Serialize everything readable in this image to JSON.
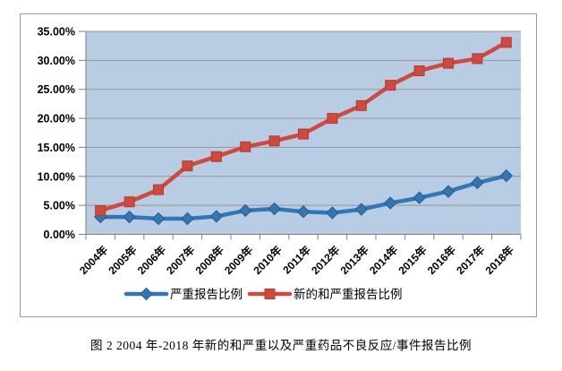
{
  "figure": {
    "caption": "图 2 2004 年-2018 年新的和严重以及严重药品不良反应/事件报告比例"
  },
  "chart_data": {
    "type": "line",
    "title": "",
    "xlabel": "",
    "ylabel": "",
    "categories": [
      "2004年",
      "2005年",
      "2006年",
      "2007年",
      "2008年",
      "2009年",
      "2010年",
      "2011年",
      "2012年",
      "2013年",
      "2014年",
      "2015年",
      "2016年",
      "2017年",
      "2018年"
    ],
    "series": [
      {
        "name": "严重报告比例",
        "marker": "diamond",
        "color": "#3176b5",
        "edge_color": "#27598a",
        "values": [
          3.0,
          3.0,
          2.7,
          2.7,
          3.1,
          4.1,
          4.4,
          3.9,
          3.7,
          4.3,
          5.4,
          6.3,
          7.4,
          8.9,
          10.1
        ]
      },
      {
        "name": "新的和严重报告比例",
        "marker": "square",
        "color": "#d0493f",
        "edge_color": "#b23a31",
        "values": [
          4.1,
          5.6,
          7.7,
          11.8,
          13.4,
          15.1,
          16.1,
          17.3,
          20.0,
          22.2,
          25.7,
          28.2,
          29.5,
          30.3,
          33.1
        ]
      }
    ],
    "ylim": [
      0,
      35
    ],
    "y_tick_labels": [
      "0.00%",
      "5.00%",
      "10.00%",
      "15.00%",
      "20.00%",
      "25.00%",
      "30.00%",
      "35.00%"
    ],
    "grid": true,
    "legend_position": "bottom",
    "plot_bg": "#b8cce4",
    "gridline_color": "#969696",
    "axis_color": "#808080",
    "tick_label_color": "#000000"
  }
}
